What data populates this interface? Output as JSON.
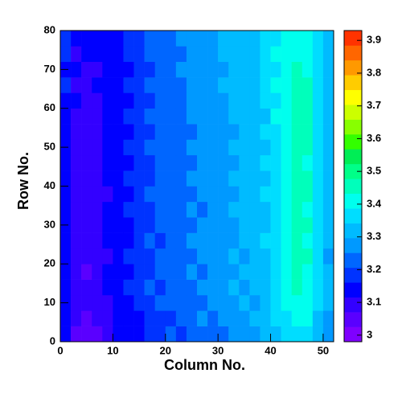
{
  "chart_data": {
    "type": "heatmap",
    "x_label": "Column No.",
    "y_label": "Row No.",
    "xlim": [
      0,
      52
    ],
    "ylim": [
      0,
      80
    ],
    "zlim": [
      2.98,
      3.93
    ],
    "xticks": [
      0,
      10,
      20,
      30,
      40,
      50
    ],
    "yticks": [
      0,
      10,
      20,
      30,
      40,
      50,
      60,
      70,
      80
    ],
    "zticks": [
      3,
      3.1,
      3.2,
      3.3,
      3.4,
      3.5,
      3.6,
      3.7,
      3.8,
      3.9
    ],
    "colors": [
      "#7f00ff",
      "#5a00ff",
      "#3300ff",
      "#0000ff",
      "#0033ff",
      "#0066ff",
      "#0099ff",
      "#00bbff",
      "#00ddff",
      "#00ffee",
      "#00ffbb",
      "#00ff88",
      "#00ee55",
      "#33ff00",
      "#88ff00",
      "#ccff00",
      "#ffff00",
      "#ffcc00",
      "#ff9900",
      "#ff6600",
      "#ff3300"
    ],
    "z": [
      [
        3.12,
        3.06,
        3.05,
        3.07,
        3.09,
        3.12,
        3.13,
        3.16,
        3.18,
        3.17,
        3.21,
        3.2,
        3.23,
        3.22,
        3.25,
        3.24,
        3.27,
        3.26,
        3.29,
        3.3,
        3.33,
        3.36,
        3.38,
        3.37,
        3.32,
        3.27
      ],
      [
        3.14,
        3.08,
        3.07,
        3.08,
        3.11,
        3.12,
        3.15,
        3.15,
        3.19,
        3.2,
        3.2,
        3.23,
        3.22,
        3.26,
        3.24,
        3.27,
        3.26,
        3.29,
        3.3,
        3.32,
        3.35,
        3.38,
        3.41,
        3.4,
        3.34,
        3.29
      ],
      [
        3.15,
        3.09,
        3.1,
        3.09,
        3.1,
        3.14,
        3.16,
        3.18,
        3.17,
        3.22,
        3.22,
        3.21,
        3.25,
        3.24,
        3.27,
        3.26,
        3.29,
        3.31,
        3.29,
        3.33,
        3.36,
        3.39,
        3.42,
        3.41,
        3.35,
        3.31
      ],
      [
        3.16,
        3.1,
        3.08,
        3.11,
        3.12,
        3.13,
        3.17,
        3.19,
        3.21,
        3.2,
        3.24,
        3.25,
        3.24,
        3.27,
        3.28,
        3.27,
        3.3,
        3.29,
        3.32,
        3.34,
        3.37,
        3.41,
        3.44,
        3.42,
        3.37,
        3.3
      ],
      [
        3.14,
        3.09,
        3.07,
        3.09,
        3.13,
        3.15,
        3.15,
        3.17,
        3.2,
        3.22,
        3.23,
        3.24,
        3.26,
        3.25,
        3.27,
        3.29,
        3.28,
        3.31,
        3.31,
        3.33,
        3.38,
        3.42,
        3.45,
        3.43,
        3.36,
        3.31
      ],
      [
        3.15,
        3.08,
        3.08,
        3.1,
        3.11,
        3.14,
        3.17,
        3.19,
        3.19,
        3.21,
        3.24,
        3.23,
        3.25,
        3.27,
        3.26,
        3.28,
        3.3,
        3.29,
        3.32,
        3.34,
        3.37,
        3.41,
        3.44,
        3.44,
        3.37,
        3.29
      ],
      [
        3.16,
        3.1,
        3.09,
        3.08,
        3.12,
        3.13,
        3.16,
        3.18,
        3.21,
        3.2,
        3.22,
        3.25,
        3.26,
        3.26,
        3.28,
        3.27,
        3.29,
        3.3,
        3.31,
        3.35,
        3.38,
        3.42,
        3.45,
        3.43,
        3.36,
        3.3
      ],
      [
        3.14,
        3.09,
        3.08,
        3.1,
        3.13,
        3.15,
        3.15,
        3.19,
        3.2,
        3.22,
        3.23,
        3.24,
        3.25,
        3.27,
        3.27,
        3.29,
        3.28,
        3.31,
        3.32,
        3.33,
        3.37,
        3.41,
        3.46,
        3.44,
        3.37,
        3.31
      ],
      [
        3.15,
        3.1,
        3.09,
        3.11,
        3.12,
        3.14,
        3.17,
        3.17,
        3.19,
        3.21,
        3.24,
        3.23,
        3.26,
        3.25,
        3.28,
        3.28,
        3.3,
        3.3,
        3.31,
        3.34,
        3.36,
        3.42,
        3.45,
        3.43,
        3.38,
        3.3
      ],
      [
        3.16,
        3.11,
        3.08,
        3.09,
        3.11,
        3.15,
        3.16,
        3.18,
        3.21,
        3.22,
        3.22,
        3.25,
        3.24,
        3.27,
        3.26,
        3.29,
        3.29,
        3.31,
        3.32,
        3.35,
        3.38,
        3.41,
        3.44,
        3.44,
        3.36,
        3.31
      ],
      [
        3.15,
        3.09,
        3.09,
        3.1,
        3.13,
        3.14,
        3.17,
        3.19,
        3.2,
        3.21,
        3.24,
        3.24,
        3.26,
        3.26,
        3.28,
        3.28,
        3.3,
        3.3,
        3.33,
        3.34,
        3.37,
        3.43,
        3.46,
        3.45,
        3.37,
        3.3
      ],
      [
        3.14,
        3.1,
        3.1,
        3.11,
        3.12,
        3.13,
        3.16,
        3.18,
        3.19,
        3.23,
        3.23,
        3.25,
        3.25,
        3.27,
        3.27,
        3.29,
        3.29,
        3.31,
        3.31,
        3.35,
        3.38,
        3.42,
        3.45,
        3.43,
        3.38,
        3.31
      ],
      [
        3.16,
        3.11,
        3.09,
        3.1,
        3.12,
        3.15,
        3.17,
        3.17,
        3.21,
        3.21,
        3.24,
        3.24,
        3.26,
        3.26,
        3.28,
        3.28,
        3.3,
        3.31,
        3.32,
        3.34,
        3.37,
        3.41,
        3.47,
        3.44,
        3.36,
        3.3
      ],
      [
        3.15,
        3.1,
        3.1,
        3.11,
        3.13,
        3.14,
        3.16,
        3.19,
        3.2,
        3.22,
        3.23,
        3.25,
        3.25,
        3.27,
        3.27,
        3.29,
        3.29,
        3.3,
        3.33,
        3.35,
        3.38,
        3.42,
        3.46,
        3.45,
        3.37,
        3.31
      ],
      [
        3.16,
        3.11,
        3.11,
        3.1,
        3.12,
        3.15,
        3.17,
        3.18,
        3.21,
        3.21,
        3.24,
        3.24,
        3.26,
        3.26,
        3.28,
        3.28,
        3.3,
        3.31,
        3.32,
        3.34,
        3.39,
        3.43,
        3.47,
        3.45,
        3.38,
        3.3
      ],
      [
        3.15,
        3.12,
        3.1,
        3.11,
        3.13,
        3.14,
        3.16,
        3.19,
        3.2,
        3.22,
        3.23,
        3.25,
        3.27,
        3.27,
        3.29,
        3.29,
        3.31,
        3.3,
        3.33,
        3.35,
        3.38,
        3.42,
        3.46,
        3.44,
        3.37,
        3.31
      ],
      [
        3.17,
        3.11,
        3.11,
        3.12,
        3.12,
        3.15,
        3.17,
        3.18,
        3.21,
        3.22,
        3.24,
        3.24,
        3.26,
        3.28,
        3.28,
        3.3,
        3.3,
        3.32,
        3.32,
        3.36,
        3.39,
        3.43,
        3.45,
        3.44,
        3.38,
        3.32
      ],
      [
        3.16,
        3.12,
        3.1,
        3.11,
        3.14,
        3.15,
        3.16,
        3.19,
        3.2,
        3.23,
        3.23,
        3.26,
        3.27,
        3.27,
        3.29,
        3.29,
        3.31,
        3.31,
        3.34,
        3.35,
        3.38,
        3.42,
        3.44,
        3.43,
        3.37,
        3.31
      ],
      [
        3.17,
        3.11,
        3.12,
        3.12,
        3.13,
        3.16,
        3.18,
        3.18,
        3.22,
        3.22,
        3.25,
        3.25,
        3.26,
        3.28,
        3.28,
        3.3,
        3.3,
        3.32,
        3.33,
        3.36,
        3.39,
        3.41,
        3.43,
        3.42,
        3.36,
        3.32
      ],
      [
        3.18,
        3.13,
        3.12,
        3.13,
        3.15,
        3.16,
        3.19,
        3.2,
        3.22,
        3.23,
        3.25,
        3.27,
        3.27,
        3.29,
        3.29,
        3.31,
        3.31,
        3.33,
        3.34,
        3.35,
        3.37,
        3.39,
        3.41,
        3.4,
        3.35,
        3.33
      ]
    ]
  }
}
